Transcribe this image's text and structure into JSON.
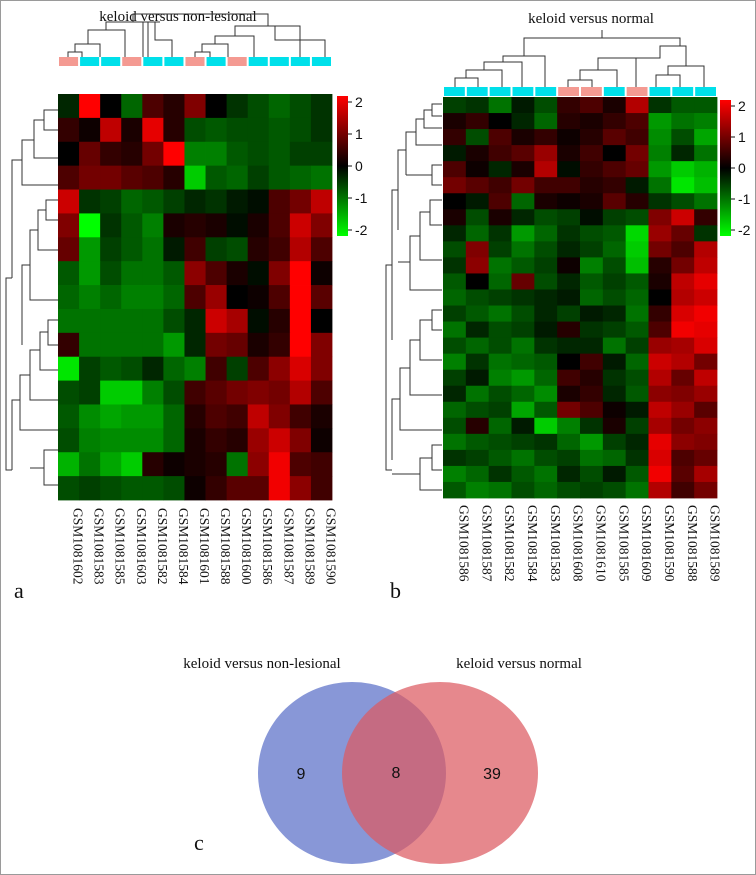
{
  "colors": {
    "low": "#00ff00",
    "mid": "#000000",
    "high": "#ff0000",
    "group_keloid": "#00e0ea",
    "group_other": "#f49a92",
    "venn_left": "#5a6fc8",
    "venn_right": "#dc5a61"
  },
  "panel_labels": {
    "a": "a",
    "b": "b",
    "c": "c"
  },
  "chart_data": [
    {
      "type": "heatmap",
      "id": "a",
      "title": "keloid versus non-lesional",
      "legend_ticks": [
        "2",
        "1",
        "0",
        "-1",
        "-2"
      ],
      "legend_range": [
        -2,
        2
      ],
      "columns": [
        "GSM1081602",
        "GSM1081583",
        "GSM1081585",
        "GSM1081603",
        "GSM1081582",
        "GSM1081584",
        "GSM1081601",
        "GSM1081588",
        "GSM1081600",
        "GSM1081586",
        "GSM1081587",
        "GSM1081589",
        "GSM1081590"
      ],
      "column_groups": [
        "other",
        "keloid",
        "keloid",
        "other",
        "keloid",
        "keloid",
        "other",
        "keloid",
        "other",
        "keloid",
        "keloid",
        "keloid",
        "keloid"
      ],
      "values": [
        [
          -0.3,
          2.0,
          0.0,
          -0.8,
          0.6,
          0.3,
          1.0,
          0.0,
          -0.4,
          -0.6,
          -0.8,
          -0.6,
          -0.4
        ],
        [
          0.4,
          0.1,
          1.5,
          0.2,
          1.8,
          0.3,
          -0.6,
          -0.7,
          -0.6,
          -0.6,
          -0.7,
          -0.6,
          -0.4
        ],
        [
          0.0,
          0.8,
          0.4,
          0.3,
          0.9,
          2.0,
          -1.0,
          -1.0,
          -0.7,
          -0.6,
          -0.7,
          -0.5,
          -0.5
        ],
        [
          0.6,
          0.9,
          0.9,
          0.7,
          0.6,
          0.3,
          -1.6,
          -0.7,
          -0.8,
          -0.5,
          -0.7,
          -0.8,
          -0.9
        ],
        [
          1.6,
          -0.4,
          -0.5,
          -0.8,
          -0.7,
          -0.5,
          -0.3,
          -0.4,
          -0.2,
          -0.1,
          0.6,
          0.9,
          1.5
        ],
        [
          1.0,
          -2.0,
          -0.4,
          -0.7,
          -1.0,
          0.2,
          0.3,
          0.2,
          -0.1,
          0.2,
          0.6,
          1.6,
          1.0
        ],
        [
          0.8,
          -1.2,
          -0.5,
          -0.7,
          -0.9,
          -0.2,
          0.5,
          -0.5,
          -0.6,
          0.3,
          0.5,
          1.4,
          0.6
        ],
        [
          -0.7,
          -1.2,
          -0.6,
          -0.9,
          -0.9,
          -0.7,
          1.1,
          0.6,
          0.2,
          -0.1,
          1.0,
          2.0,
          0.1
        ],
        [
          -0.8,
          -1.0,
          -0.8,
          -1.0,
          -1.0,
          -0.8,
          0.6,
          1.2,
          0.0,
          0.1,
          0.6,
          2.0,
          0.7
        ],
        [
          -0.9,
          -0.9,
          -0.9,
          -0.9,
          -0.9,
          -0.6,
          -0.3,
          1.6,
          1.3,
          -0.1,
          0.3,
          2.0,
          0.0
        ],
        [
          0.4,
          -0.9,
          -0.9,
          -0.9,
          -0.9,
          -1.2,
          -0.3,
          0.9,
          0.8,
          0.2,
          0.4,
          2.0,
          1.0
        ],
        [
          -1.8,
          -0.5,
          -0.7,
          -0.6,
          -0.3,
          -0.8,
          -1.0,
          0.5,
          -0.5,
          0.6,
          1.1,
          1.7,
          1.0
        ],
        [
          -0.6,
          -0.5,
          -1.6,
          -1.6,
          -1.0,
          -0.6,
          0.5,
          0.7,
          0.9,
          1.0,
          0.9,
          1.4,
          0.6
        ],
        [
          -0.7,
          -1.1,
          -1.3,
          -1.2,
          -1.2,
          -0.8,
          0.3,
          0.6,
          0.5,
          1.5,
          1.0,
          0.5,
          0.2
        ],
        [
          -0.6,
          -1.0,
          -1.1,
          -1.1,
          -1.1,
          -0.8,
          0.2,
          0.4,
          0.3,
          1.2,
          1.6,
          1.0,
          0.1
        ],
        [
          -1.4,
          -0.9,
          -1.3,
          -1.6,
          0.3,
          0.1,
          0.2,
          0.3,
          -0.9,
          1.1,
          1.9,
          0.6,
          0.5
        ],
        [
          -0.6,
          -0.5,
          -0.6,
          -0.7,
          -0.7,
          -0.6,
          0.1,
          0.4,
          0.7,
          0.7,
          1.9,
          1.1,
          0.5
        ]
      ]
    },
    {
      "type": "heatmap",
      "id": "b",
      "title": "keloid versus normal",
      "legend_ticks": [
        "2",
        "1",
        "0",
        "-1",
        "-2"
      ],
      "legend_range": [
        -2,
        2
      ],
      "columns": [
        "GSM1081586",
        "GSM1081587",
        "GSM1081582",
        "GSM1081584",
        "GSM1081583",
        "GSM1081608",
        "GSM1081610",
        "GSM1081585",
        "GSM1081609",
        "GSM1081590",
        "GSM1081588",
        "GSM1081589"
      ],
      "column_groups": [
        "keloid",
        "keloid",
        "keloid",
        "keloid",
        "keloid",
        "other",
        "other",
        "keloid",
        "other",
        "keloid",
        "keloid",
        "keloid"
      ],
      "values": [
        [
          -0.5,
          -0.4,
          -0.9,
          -0.2,
          -0.6,
          0.4,
          0.6,
          0.2,
          1.4,
          -0.4,
          -0.7,
          -0.7
        ],
        [
          0.2,
          0.4,
          0.0,
          -0.3,
          -0.8,
          0.3,
          0.2,
          0.4,
          0.6,
          -1.2,
          -0.9,
          -1.0
        ],
        [
          0.4,
          -0.6,
          0.6,
          0.2,
          0.4,
          0.1,
          0.3,
          0.7,
          0.5,
          -1.1,
          -0.6,
          -1.3
        ],
        [
          -0.2,
          0.2,
          0.5,
          0.7,
          1.2,
          0.2,
          0.5,
          0.0,
          0.9,
          -1.0,
          -0.3,
          -0.9
        ],
        [
          0.6,
          0.1,
          -0.3,
          0.2,
          1.4,
          -0.1,
          0.4,
          0.6,
          0.8,
          -1.2,
          -1.6,
          -1.4
        ],
        [
          0.9,
          0.7,
          0.5,
          0.9,
          0.5,
          0.5,
          0.3,
          0.4,
          -0.2,
          -0.9,
          -1.8,
          -1.5
        ],
        [
          0.0,
          -0.2,
          0.6,
          -0.8,
          0.2,
          0.1,
          0.2,
          0.7,
          0.3,
          -0.4,
          -0.6,
          -0.9
        ],
        [
          0.2,
          -0.6,
          0.2,
          -0.3,
          -0.6,
          -0.5,
          -0.1,
          -0.5,
          -0.6,
          1.0,
          1.6,
          0.4
        ],
        [
          -0.3,
          -0.8,
          -0.4,
          -1.2,
          -0.8,
          -0.4,
          -0.6,
          -0.7,
          -1.7,
          1.2,
          0.8,
          -0.4
        ],
        [
          -0.6,
          1.0,
          -0.5,
          -0.9,
          -0.6,
          -0.3,
          -0.5,
          -0.8,
          -1.6,
          0.9,
          0.6,
          1.4
        ],
        [
          -0.4,
          1.1,
          -0.9,
          -0.7,
          -0.5,
          0.1,
          -1.0,
          -0.6,
          -1.5,
          0.3,
          0.9,
          1.5
        ],
        [
          -0.7,
          0.0,
          -0.8,
          0.8,
          -0.6,
          -0.3,
          -0.7,
          -0.5,
          -0.7,
          0.2,
          1.5,
          1.8
        ],
        [
          -0.8,
          -0.6,
          -0.5,
          -0.4,
          -0.3,
          -0.2,
          -0.8,
          -0.6,
          -0.8,
          0.0,
          1.4,
          1.6
        ],
        [
          -0.5,
          -0.7,
          -0.9,
          -0.6,
          -0.3,
          -0.5,
          -0.2,
          -0.3,
          -0.9,
          0.4,
          1.7,
          1.9
        ],
        [
          -0.9,
          -0.3,
          -0.6,
          -0.5,
          -0.2,
          0.3,
          -0.4,
          -0.5,
          -0.7,
          0.6,
          1.9,
          1.8
        ],
        [
          -0.6,
          -0.8,
          -0.6,
          -0.9,
          -0.4,
          -0.3,
          -0.3,
          -0.9,
          -0.5,
          1.2,
          1.3,
          1.7
        ],
        [
          -1.0,
          -0.4,
          -0.9,
          -0.8,
          -0.7,
          0.0,
          0.5,
          -0.2,
          -0.8,
          1.6,
          1.4,
          0.9
        ],
        [
          -0.5,
          -0.2,
          -1.0,
          -1.2,
          -0.8,
          0.5,
          0.3,
          -0.4,
          -0.6,
          1.4,
          0.8,
          1.5
        ],
        [
          -0.3,
          -0.9,
          -0.6,
          -0.8,
          -1.1,
          0.2,
          0.4,
          -0.3,
          -0.7,
          1.1,
          1.0,
          1.2
        ],
        [
          -0.8,
          -0.6,
          -0.5,
          -1.3,
          -0.7,
          0.9,
          0.6,
          0.1,
          -0.2,
          1.5,
          1.2,
          0.7
        ],
        [
          -0.6,
          0.3,
          -0.8,
          -0.2,
          -1.6,
          -1.0,
          -0.4,
          0.2,
          -0.5,
          1.3,
          0.9,
          1.1
        ],
        [
          -0.9,
          -0.7,
          -0.6,
          -0.5,
          -0.4,
          -0.8,
          -1.2,
          -0.5,
          -0.3,
          1.8,
          1.1,
          1.0
        ],
        [
          -0.4,
          -0.5,
          -0.7,
          -0.9,
          -0.6,
          -0.5,
          -0.9,
          -0.8,
          -0.4,
          1.7,
          0.6,
          0.8
        ],
        [
          -1.0,
          -0.8,
          -0.4,
          -0.7,
          -0.9,
          -0.3,
          -0.6,
          -0.2,
          -0.7,
          1.9,
          0.7,
          1.3
        ],
        [
          -0.7,
          -1.0,
          -0.9,
          -0.6,
          -0.8,
          -0.6,
          -0.5,
          -0.6,
          -0.9,
          1.4,
          0.5,
          0.9
        ]
      ]
    },
    {
      "type": "venn",
      "id": "c",
      "sets": [
        {
          "name": "keloid versus non-lesional",
          "only": 9
        },
        {
          "name": "keloid versus normal",
          "only": 39
        }
      ],
      "intersection": 8
    }
  ]
}
